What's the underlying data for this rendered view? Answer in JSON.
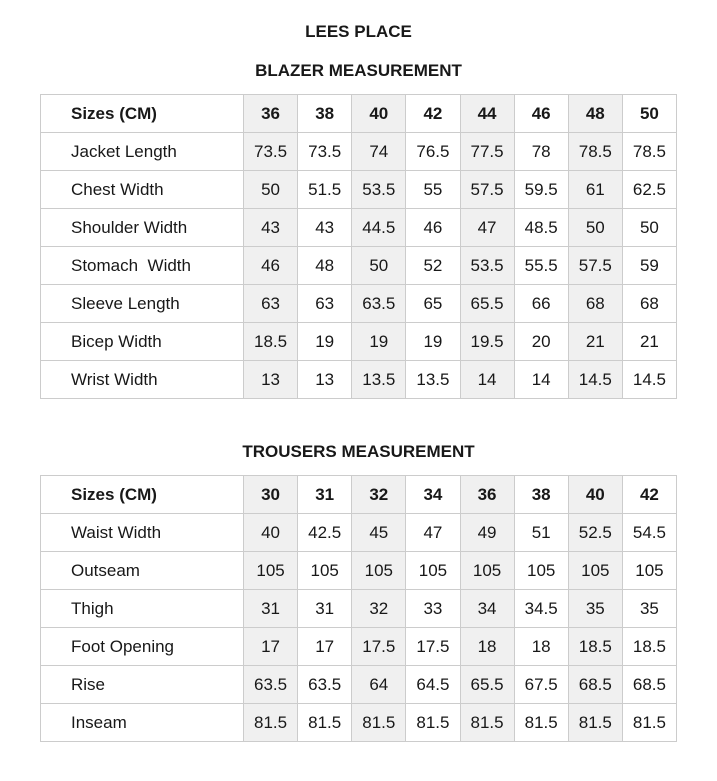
{
  "page": {
    "title": "LEES PLACE"
  },
  "tables": [
    {
      "section_title": "BLAZER MEASUREMENT",
      "header": {
        "label": "Sizes (CM)",
        "sizes": [
          "36",
          "38",
          "40",
          "42",
          "44",
          "46",
          "48",
          "50"
        ]
      },
      "rows": [
        {
          "label": "Jacket Length",
          "values": [
            "73.5",
            "73.5",
            "74",
            "76.5",
            "77.5",
            "78",
            "78.5",
            "78.5"
          ]
        },
        {
          "label": "Chest Width",
          "values": [
            "50",
            "51.5",
            "53.5",
            "55",
            "57.5",
            "59.5",
            "61",
            "62.5"
          ]
        },
        {
          "label": "Shoulder Width",
          "values": [
            "43",
            "43",
            "44.5",
            "46",
            "47",
            "48.5",
            "50",
            "50"
          ]
        },
        {
          "label": "Stomach  Width",
          "values": [
            "46",
            "48",
            "50",
            "52",
            "53.5",
            "55.5",
            "57.5",
            "59"
          ]
        },
        {
          "label": "Sleeve Length",
          "values": [
            "63",
            "63",
            "63.5",
            "65",
            "65.5",
            "66",
            "68",
            "68"
          ]
        },
        {
          "label": "Bicep Width",
          "values": [
            "18.5",
            "19",
            "19",
            "19",
            "19.5",
            "20",
            "21",
            "21"
          ]
        },
        {
          "label": "Wrist Width",
          "values": [
            "13",
            "13",
            "13.5",
            "13.5",
            "14",
            "14",
            "14.5",
            "14.5"
          ]
        }
      ]
    },
    {
      "section_title": "TROUSERS MEASUREMENT",
      "header": {
        "label": "Sizes (CM)",
        "sizes": [
          "30",
          "31",
          "32",
          "34",
          "36",
          "38",
          "40",
          "42"
        ]
      },
      "rows": [
        {
          "label": "Waist Width",
          "values": [
            "40",
            "42.5",
            "45",
            "47",
            "49",
            "51",
            "52.5",
            "54.5"
          ]
        },
        {
          "label": "Outseam",
          "values": [
            "105",
            "105",
            "105",
            "105",
            "105",
            "105",
            "105",
            "105"
          ]
        },
        {
          "label": "Thigh",
          "values": [
            "31",
            "31",
            "32",
            "33",
            "34",
            "34.5",
            "35",
            "35"
          ]
        },
        {
          "label": "Foot Opening",
          "values": [
            "17",
            "17",
            "17.5",
            "17.5",
            "18",
            "18",
            "18.5",
            "18.5"
          ]
        },
        {
          "label": "Rise",
          "values": [
            "63.5",
            "63.5",
            "64",
            "64.5",
            "65.5",
            "67.5",
            "68.5",
            "68.5"
          ]
        },
        {
          "label": "Inseam",
          "values": [
            "81.5",
            "81.5",
            "81.5",
            "81.5",
            "81.5",
            "81.5",
            "81.5",
            "81.5"
          ]
        }
      ]
    }
  ],
  "colors": {
    "shaded_column_bg": "#f0f0f0",
    "border": "#cccccc",
    "text": "#181818"
  }
}
